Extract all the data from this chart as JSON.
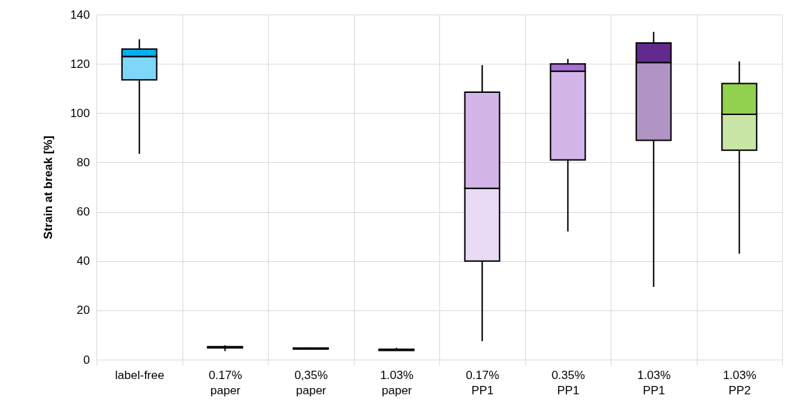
{
  "chart_data": {
    "type": "box",
    "ylabel": "Strain at break [%]",
    "categories": [
      "label-free",
      "0.17%\npaper",
      "0,35%\npaper",
      "1.03%\npaper",
      "0.17%\nPP1",
      "0.35%\nPP1",
      "1.03%\nPP1",
      "1.03%\nPP2"
    ],
    "boxes": [
      {
        "low": 83.5,
        "q1": 113.5,
        "median": 123,
        "q3": 126,
        "high": 130
      },
      {
        "low": 3.5,
        "q1": 4.8,
        "median": 5,
        "q3": 5.3,
        "high": 5.8
      },
      {
        "low": 4.3,
        "q1": 4.3,
        "median": 4.5,
        "q3": 4.7,
        "high": 4.8
      },
      {
        "low": 3.7,
        "q1": 3.7,
        "median": 4,
        "q3": 4.2,
        "high": 4.8
      },
      {
        "low": 7.5,
        "q1": 40,
        "median": 69.5,
        "q3": 108.5,
        "high": 119.5
      },
      {
        "low": 52,
        "q1": 81,
        "median": 117,
        "q3": 120,
        "high": 122
      },
      {
        "low": 29.5,
        "q1": 89,
        "median": 120.5,
        "q3": 128.5,
        "high": 133
      },
      {
        "low": 43,
        "q1": 85,
        "median": 99.5,
        "q3": 112,
        "high": 121
      }
    ],
    "colors": [
      [
        "#00b0f0",
        "#7fd7f7"
      ],
      [
        "#000000",
        "#000000"
      ],
      [
        "#000000",
        "#000000"
      ],
      [
        "#000000",
        "#000000"
      ],
      [
        "#d3b5e8",
        "#e8dbf3"
      ],
      [
        "#a86fd6",
        "#d3b5e8"
      ],
      [
        "#62298f",
        "#b095c4"
      ],
      [
        "#92d050",
        "#c9e6a6"
      ]
    ],
    "ylim": [
      0,
      140
    ],
    "yticks": [
      0,
      20,
      40,
      60,
      80,
      100,
      120,
      140
    ],
    "grid": true
  }
}
